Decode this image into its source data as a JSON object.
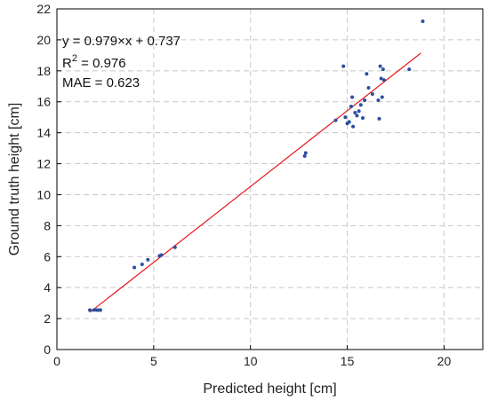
{
  "chart_data": {
    "type": "scatter",
    "xlabel": "Predicted height [cm]",
    "ylabel": "Ground truth height [cm]",
    "xlim": [
      0,
      22
    ],
    "ylim": [
      0,
      22
    ],
    "xticks": [
      0,
      5,
      10,
      15,
      20
    ],
    "yticks": [
      0,
      2,
      4,
      6,
      8,
      10,
      12,
      14,
      16,
      18,
      20,
      22
    ],
    "grid": true,
    "annotations": {
      "equation": "y = 0.979×x + 0.737",
      "r2_prefix": "R",
      "r2_sup": "2",
      "r2_value": " = 0.976",
      "mae": "MAE = 0.623"
    },
    "fit_line": {
      "slope": 0.979,
      "intercept": 0.737,
      "x_range": [
        1.7,
        18.8
      ],
      "color": "#e8191c"
    },
    "point_color": "#2b4f9e",
    "points": [
      [
        1.7,
        2.55
      ],
      [
        1.9,
        2.55
      ],
      [
        2.05,
        2.55
      ],
      [
        2.15,
        2.55
      ],
      [
        2.25,
        2.55
      ],
      [
        4.0,
        5.3
      ],
      [
        4.4,
        5.5
      ],
      [
        4.7,
        5.8
      ],
      [
        5.3,
        6.05
      ],
      [
        5.4,
        6.1
      ],
      [
        6.1,
        6.6
      ],
      [
        12.8,
        12.5
      ],
      [
        12.85,
        12.7
      ],
      [
        14.4,
        14.8
      ],
      [
        14.8,
        18.3
      ],
      [
        14.9,
        15.0
      ],
      [
        15.0,
        14.6
      ],
      [
        15.1,
        14.7
      ],
      [
        15.2,
        15.7
      ],
      [
        15.25,
        16.3
      ],
      [
        15.3,
        14.4
      ],
      [
        15.4,
        15.3
      ],
      [
        15.5,
        15.1
      ],
      [
        15.6,
        15.4
      ],
      [
        15.7,
        15.8
      ],
      [
        15.8,
        14.95
      ],
      [
        15.9,
        16.1
      ],
      [
        16.0,
        17.8
      ],
      [
        16.1,
        16.9
      ],
      [
        16.3,
        16.5
      ],
      [
        16.6,
        16.1
      ],
      [
        16.65,
        14.9
      ],
      [
        16.7,
        18.3
      ],
      [
        16.75,
        17.5
      ],
      [
        16.8,
        16.3
      ],
      [
        16.85,
        18.1
      ],
      [
        16.9,
        17.4
      ],
      [
        18.2,
        18.1
      ],
      [
        18.9,
        21.2
      ]
    ]
  }
}
